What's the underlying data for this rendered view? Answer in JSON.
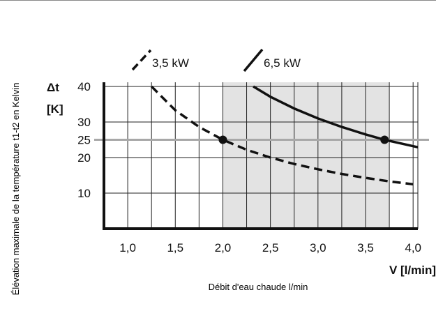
{
  "chart_data": {
    "type": "line",
    "xlabel": "Débit d'eau chaude l/min",
    "ylabel": "Élévation maximale de la température t1-t2 en Kelvin",
    "x_unit_label": "V [l/min]",
    "y_unit_label_top": "Δt",
    "y_unit_label_bottom": "[K]",
    "xlim": [
      0.75,
      4.05
    ],
    "ylim": [
      0,
      40
    ],
    "x_ticks": [
      {
        "value": 1.0,
        "label": "1,0"
      },
      {
        "value": 1.5,
        "label": "1,5"
      },
      {
        "value": 2.0,
        "label": "2,0"
      },
      {
        "value": 2.5,
        "label": "2,5"
      },
      {
        "value": 3.0,
        "label": "3,0"
      },
      {
        "value": 3.5,
        "label": "3,5"
      },
      {
        "value": 4.0,
        "label": "4,0"
      }
    ],
    "y_ticks": [
      {
        "value": 10,
        "label": "10"
      },
      {
        "value": 20,
        "label": "20"
      },
      {
        "value": 25,
        "label": "25"
      },
      {
        "value": 30,
        "label": "30"
      },
      {
        "value": 40,
        "label": "40"
      }
    ],
    "grid": true,
    "shaded_region_x": [
      2.0,
      3.75
    ],
    "reference_line_y": 25,
    "series": [
      {
        "name": "3,5 kW",
        "style": "dashed",
        "x": [
          1.25,
          1.5,
          1.75,
          2.0,
          2.25,
          2.5,
          2.75,
          3.0,
          3.25,
          3.5,
          3.75,
          4.0
        ],
        "y": [
          40.0,
          33.3,
          28.6,
          25.0,
          22.2,
          20.0,
          18.2,
          16.7,
          15.4,
          14.3,
          13.3,
          12.5
        ]
      },
      {
        "name": "6,5 kW",
        "style": "solid",
        "x": [
          2.32,
          2.5,
          2.75,
          3.0,
          3.25,
          3.5,
          3.7,
          3.85,
          4.05
        ],
        "y": [
          40.0,
          37.1,
          33.8,
          31.0,
          28.6,
          26.5,
          25.0,
          24.1,
          22.9
        ]
      }
    ],
    "markers": [
      {
        "x": 2.0,
        "y": 25
      },
      {
        "x": 3.7,
        "y": 25
      }
    ],
    "colors": {
      "axis": "#111111",
      "grid": "#222222",
      "shade": "#e3e3e3",
      "reference": "#a8a8a8",
      "curve": "#111111"
    }
  }
}
